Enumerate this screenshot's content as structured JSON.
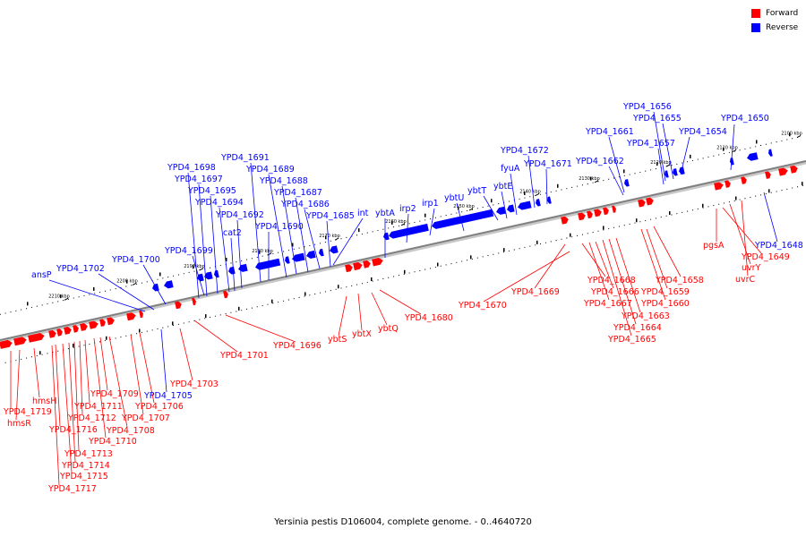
{
  "caption": "Yersinia pestis D106004, complete genome. - 0..4640720",
  "legend": [
    {
      "label": "Forward",
      "color": "#ff0000"
    },
    {
      "label": "Reverse",
      "color": "#0000ff"
    }
  ],
  "colors": {
    "forward": "#ff0000",
    "reverse": "#0000ff",
    "axis": "#808080"
  },
  "ticks": [
    "2100 kbp",
    "2110 kbp",
    "2120 kbp",
    "2130 kbp",
    "2140 kbp",
    "2150 kbp",
    "2160 kbp",
    "2170 kbp",
    "2180 kbp",
    "2190 kbp",
    "2200 kbp",
    "2210 kbp"
  ],
  "reverse_genes": [
    "YPD4_1650",
    "YPD4_1654",
    "YPD4_1655",
    "YPD4_1656",
    "YPD4_1657",
    "YPD4_1661",
    "YPD4_1662",
    "YPD4_1648",
    "YPD4_1671",
    "YPD4_1672",
    "fyuA",
    "ybtE",
    "ybtT",
    "ybtU",
    "irp1",
    "irp2",
    "ybtA",
    "int",
    "YPD4_1685",
    "YPD4_1686",
    "YPD4_1687",
    "YPD4_1688",
    "YPD4_1689",
    "YPD4_1690",
    "YPD4_1691",
    "YPD4_1692",
    "cat2",
    "YPD4_1694",
    "YPD4_1695",
    "YPD4_1697",
    "YPD4_1698",
    "YPD4_1699",
    "YPD4_1700",
    "YPD4_1702",
    "ansP",
    "YPD4_1705"
  ],
  "forward_genes": [
    "YPD4_1649",
    "pgsA",
    "uvrY",
    "uvrC",
    "YPD4_1658",
    "YPD4_1659",
    "YPD4_1660",
    "YPD4_1663",
    "YPD4_1664",
    "YPD4_1665",
    "YPD4_1666",
    "YPD4_1667",
    "YPD4_1668",
    "YPD4_1669",
    "YPD4_1670",
    "YPD4_1680",
    "ybtQ",
    "ybtX",
    "ybtS",
    "YPD4_1696",
    "YPD4_1701",
    "YPD4_1703",
    "YPD4_1706",
    "YPD4_1707",
    "YPD4_1708",
    "YPD4_1709",
    "YPD4_1710",
    "YPD4_1711",
    "YPD4_1712",
    "YPD4_1713",
    "YPD4_1714",
    "YPD4_1715",
    "YPD4_1716",
    "YPD4_1717",
    "YPD4_1719",
    "hmsH",
    "hmsR"
  ]
}
